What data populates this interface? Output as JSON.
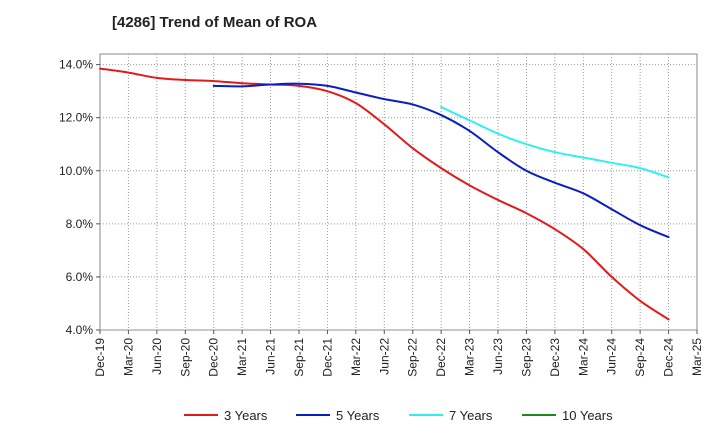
{
  "chart_data": {
    "type": "line",
    "title": "[4286]  Trend of Mean of ROA",
    "xlabel": "",
    "ylabel": "",
    "ylim": [
      4.0,
      14.4
    ],
    "yticks": [
      4.0,
      6.0,
      8.0,
      10.0,
      12.0,
      14.0
    ],
    "ytick_labels": [
      "4.0%",
      "6.0%",
      "8.0%",
      "10.0%",
      "12.0%",
      "14.0%"
    ],
    "x_tick_labels": [
      "Dec-19",
      "Mar-20",
      "Jun-20",
      "Sep-20",
      "Dec-20",
      "Mar-21",
      "Jun-21",
      "Sep-21",
      "Dec-21",
      "Mar-22",
      "Jun-22",
      "Sep-22",
      "Dec-22",
      "Mar-23",
      "Jun-23",
      "Sep-23",
      "Dec-23",
      "Mar-24",
      "Jun-24",
      "Sep-24",
      "Dec-24",
      "Mar-25"
    ],
    "grid": true,
    "legend_position": "bottom",
    "series": [
      {
        "name": "3 Years",
        "color": "#e31a1c",
        "start_index": 0,
        "values": [
          13.85,
          13.7,
          13.5,
          13.42,
          13.38,
          13.3,
          13.25,
          13.2,
          13.0,
          12.55,
          11.75,
          10.85,
          10.1,
          9.45,
          8.9,
          8.4,
          7.8,
          7.05,
          6.0,
          5.1,
          4.4
        ]
      },
      {
        "name": "5 Years",
        "color": "#0b1ec4",
        "start_index": 4,
        "values": [
          13.2,
          13.18,
          13.25,
          13.28,
          13.2,
          12.95,
          12.7,
          12.5,
          12.1,
          11.5,
          10.7,
          10.0,
          9.55,
          9.15,
          8.55,
          7.95,
          7.5
        ]
      },
      {
        "name": "7 Years",
        "color": "#33eef0",
        "start_index": 12,
        "values": [
          12.4,
          11.9,
          11.4,
          11.0,
          10.7,
          10.5,
          10.3,
          10.1,
          9.75
        ]
      },
      {
        "name": "10 Years",
        "color": "#1a8a1a",
        "start_index": 0,
        "values": []
      }
    ]
  }
}
